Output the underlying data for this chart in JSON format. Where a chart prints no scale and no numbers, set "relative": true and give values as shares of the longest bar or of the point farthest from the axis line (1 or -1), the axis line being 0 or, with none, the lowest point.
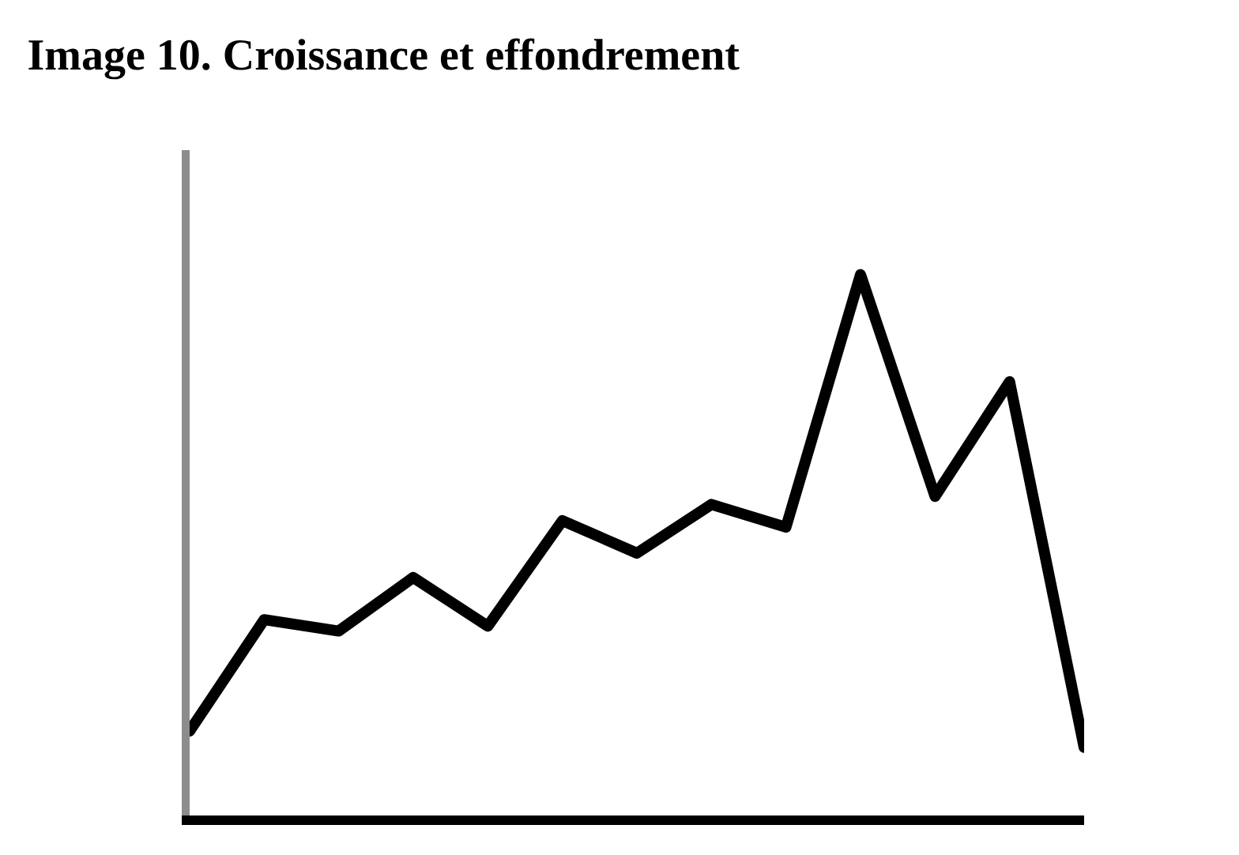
{
  "chart_data": {
    "type": "line",
    "title": "Image 10. Croissance et effondrement",
    "relative": true,
    "categories": [
      null,
      null,
      null,
      null,
      null,
      null,
      null,
      null,
      null,
      null,
      null,
      null,
      null
    ],
    "series": [
      {
        "color": "#000000",
        "values": [
          0.156,
          0.362,
          0.341,
          0.44,
          0.35,
          0.545,
          0.485,
          0.575,
          0.533,
          1,
          0.59,
          0.802,
          0.126
        ]
      }
    ],
    "marker": "none",
    "line_style": "solid"
  }
}
